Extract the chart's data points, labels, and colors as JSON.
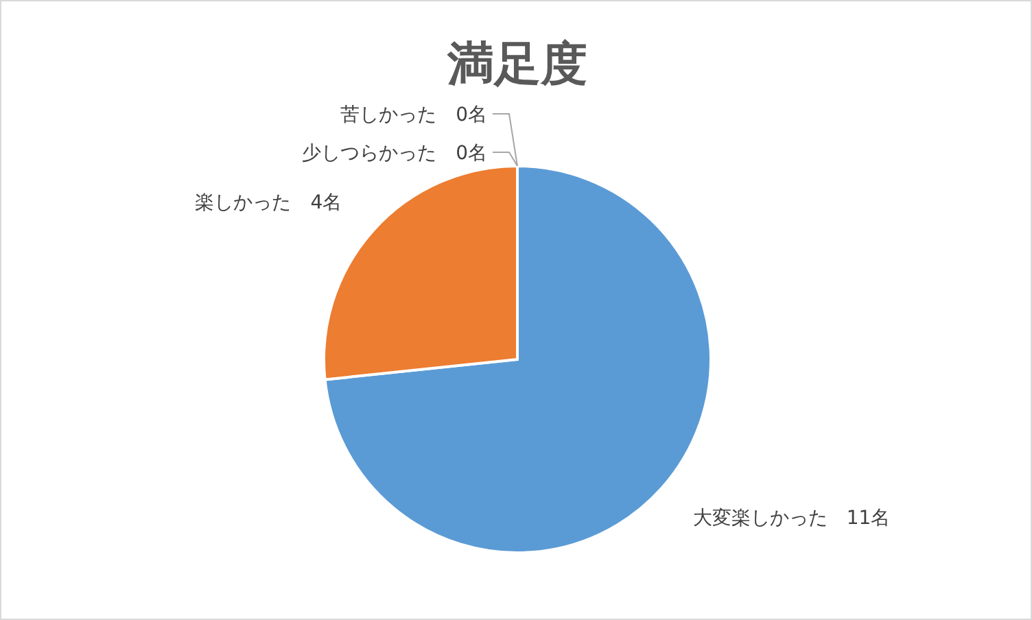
{
  "chart_data": {
    "type": "pie",
    "title": "満足度",
    "categories": [
      "大変楽しかった",
      "楽しかった",
      "少しつらかった",
      "苦しかった"
    ],
    "values": [
      11,
      4,
      0,
      0
    ],
    "value_labels": [
      "11名",
      "4名",
      "0名",
      "0名"
    ],
    "colors": [
      "#5b9bd5",
      "#ed7d31",
      "#a5a5a5",
      "#ffc000"
    ]
  }
}
